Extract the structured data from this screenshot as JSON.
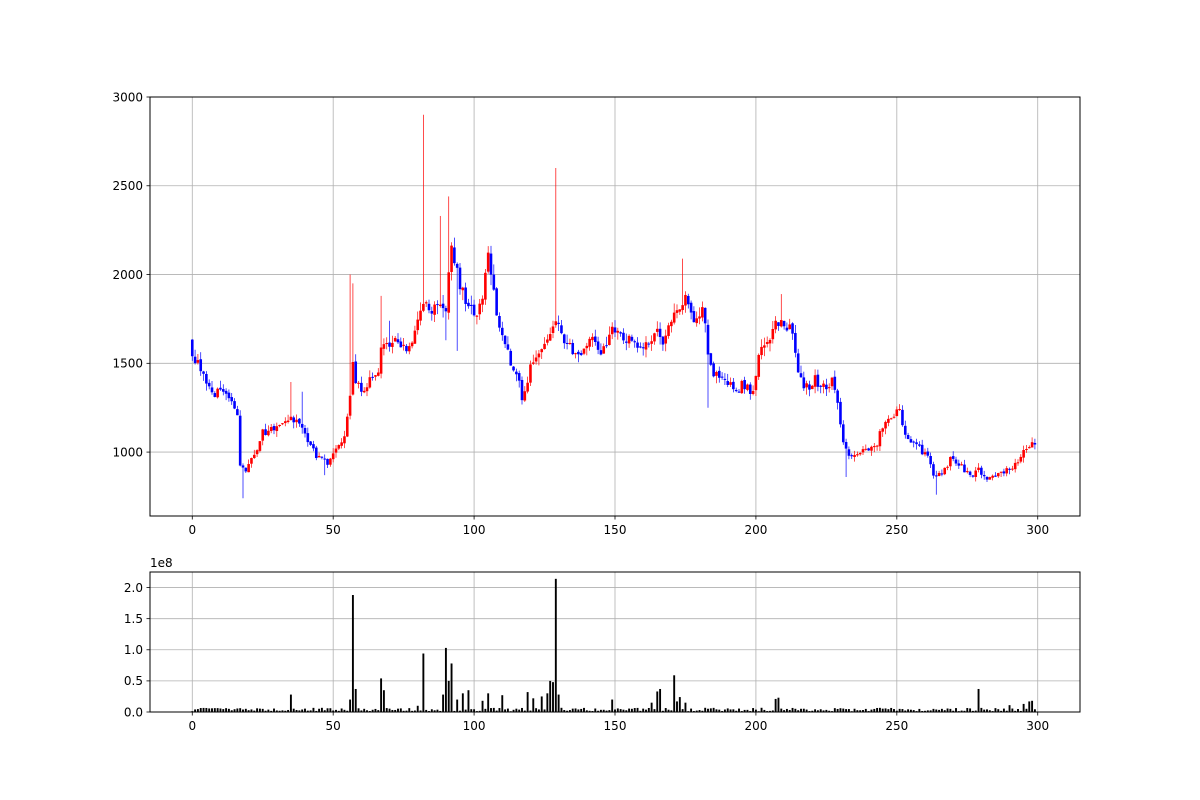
{
  "chart_data": [
    {
      "type": "candlestick",
      "panel": "price",
      "xlim": [
        -15,
        315
      ],
      "ylim": [
        640,
        3000
      ],
      "grid": true,
      "xticks": [
        0,
        50,
        100,
        150,
        200,
        250,
        300
      ],
      "yticks": [
        1000,
        1500,
        2000,
        2500,
        3000
      ],
      "xtick_labels": [
        "0",
        "50",
        "100",
        "150",
        "200",
        "250",
        "300"
      ],
      "ytick_labels": [
        "1000",
        "1500",
        "2000",
        "2500",
        "3000"
      ],
      "close_anchors": [
        [
          0,
          1520
        ],
        [
          2,
          1500
        ],
        [
          4,
          1420
        ],
        [
          6,
          1380
        ],
        [
          8,
          1330
        ],
        [
          10,
          1360
        ],
        [
          12,
          1320
        ],
        [
          14,
          1300
        ],
        [
          16,
          1200
        ],
        [
          17,
          920
        ],
        [
          19,
          900
        ],
        [
          21,
          960
        ],
        [
          23,
          1020
        ],
        [
          25,
          1110
        ],
        [
          27,
          1120
        ],
        [
          30,
          1150
        ],
        [
          32,
          1170
        ],
        [
          34,
          1190
        ],
        [
          36,
          1180
        ],
        [
          38,
          1150
        ],
        [
          40,
          1100
        ],
        [
          42,
          1040
        ],
        [
          44,
          980
        ],
        [
          46,
          960
        ],
        [
          48,
          940
        ],
        [
          50,
          980
        ],
        [
          52,
          1030
        ],
        [
          54,
          1100
        ],
        [
          56,
          1300
        ],
        [
          57,
          1500
        ],
        [
          58,
          1400
        ],
        [
          60,
          1340
        ],
        [
          62,
          1380
        ],
        [
          64,
          1420
        ],
        [
          66,
          1450
        ],
        [
          67,
          1600
        ],
        [
          70,
          1620
        ],
        [
          72,
          1640
        ],
        [
          74,
          1600
        ],
        [
          76,
          1560
        ],
        [
          78,
          1640
        ],
        [
          80,
          1720
        ],
        [
          82,
          1840
        ],
        [
          84,
          1800
        ],
        [
          86,
          1820
        ],
        [
          88,
          1830
        ],
        [
          90,
          1820
        ],
        [
          92,
          2200
        ],
        [
          93,
          2100
        ],
        [
          95,
          1950
        ],
        [
          97,
          1860
        ],
        [
          99,
          1820
        ],
        [
          101,
          1760
        ],
        [
          103,
          1860
        ],
        [
          105,
          2100
        ],
        [
          106,
          2000
        ],
        [
          107,
          1900
        ],
        [
          108,
          1800
        ],
        [
          110,
          1640
        ],
        [
          112,
          1560
        ],
        [
          114,
          1460
        ],
        [
          116,
          1380
        ],
        [
          117,
          1290
        ],
        [
          118,
          1340
        ],
        [
          120,
          1480
        ],
        [
          122,
          1560
        ],
        [
          124,
          1560
        ],
        [
          126,
          1640
        ],
        [
          128,
          1720
        ],
        [
          129,
          1750
        ],
        [
          131,
          1650
        ],
        [
          133,
          1620
        ],
        [
          135,
          1570
        ],
        [
          137,
          1560
        ],
        [
          139,
          1580
        ],
        [
          141,
          1610
        ],
        [
          143,
          1640
        ],
        [
          145,
          1540
        ],
        [
          147,
          1620
        ],
        [
          149,
          1700
        ],
        [
          151,
          1680
        ],
        [
          153,
          1640
        ],
        [
          155,
          1640
        ],
        [
          157,
          1600
        ],
        [
          159,
          1580
        ],
        [
          161,
          1600
        ],
        [
          163,
          1650
        ],
        [
          165,
          1700
        ],
        [
          167,
          1620
        ],
        [
          169,
          1700
        ],
        [
          171,
          1760
        ],
        [
          173,
          1800
        ],
        [
          175,
          1860
        ],
        [
          177,
          1780
        ],
        [
          179,
          1740
        ],
        [
          181,
          1840
        ],
        [
          183,
          1560
        ],
        [
          185,
          1450
        ],
        [
          187,
          1420
        ],
        [
          189,
          1410
        ],
        [
          191,
          1380
        ],
        [
          193,
          1330
        ],
        [
          195,
          1390
        ],
        [
          197,
          1360
        ],
        [
          199,
          1340
        ],
        [
          201,
          1560
        ],
        [
          203,
          1580
        ],
        [
          205,
          1640
        ],
        [
          207,
          1720
        ],
        [
          209,
          1760
        ],
        [
          211,
          1700
        ],
        [
          213,
          1680
        ],
        [
          215,
          1450
        ],
        [
          217,
          1380
        ],
        [
          219,
          1360
        ],
        [
          221,
          1420
        ],
        [
          223,
          1360
        ],
        [
          225,
          1370
        ],
        [
          227,
          1400
        ],
        [
          229,
          1300
        ],
        [
          231,
          1040
        ],
        [
          233,
          980
        ],
        [
          235,
          990
        ],
        [
          237,
          1000
        ],
        [
          239,
          1010
        ],
        [
          241,
          1030
        ],
        [
          243,
          1050
        ],
        [
          245,
          1150
        ],
        [
          247,
          1190
        ],
        [
          249,
          1220
        ],
        [
          251,
          1230
        ],
        [
          253,
          1080
        ],
        [
          255,
          1060
        ],
        [
          257,
          1040
        ],
        [
          259,
          1000
        ],
        [
          261,
          980
        ],
        [
          263,
          880
        ],
        [
          265,
          870
        ],
        [
          267,
          900
        ],
        [
          269,
          960
        ],
        [
          271,
          950
        ],
        [
          273,
          920
        ],
        [
          275,
          880
        ],
        [
          277,
          870
        ],
        [
          279,
          900
        ],
        [
          281,
          860
        ],
        [
          283,
          850
        ],
        [
          285,
          870
        ],
        [
          287,
          880
        ],
        [
          289,
          900
        ],
        [
          291,
          920
        ],
        [
          293,
          950
        ],
        [
          295,
          1000
        ],
        [
          297,
          1040
        ],
        [
          299,
          1040
        ]
      ],
      "wick_spikes": [
        {
          "x": 35,
          "high": 1395
        },
        {
          "x": 39,
          "high": 1340
        },
        {
          "x": 56,
          "high": 2000
        },
        {
          "x": 57,
          "high": 1950
        },
        {
          "x": 67,
          "high": 1880
        },
        {
          "x": 70,
          "high": 1740
        },
        {
          "x": 82,
          "high": 2900
        },
        {
          "x": 88,
          "high": 2330
        },
        {
          "x": 91,
          "high": 2440
        },
        {
          "x": 105,
          "high": 2160
        },
        {
          "x": 129,
          "high": 2600
        },
        {
          "x": 174,
          "high": 2090
        },
        {
          "x": 209,
          "high": 1890
        },
        {
          "x": 251,
          "high": 1270
        }
      ],
      "wick_dips": [
        {
          "x": 18,
          "low": 740
        },
        {
          "x": 47,
          "low": 870
        },
        {
          "x": 90,
          "low": 1630
        },
        {
          "x": 94,
          "low": 1570
        },
        {
          "x": 183,
          "low": 1250
        },
        {
          "x": 232,
          "low": 860
        },
        {
          "x": 264,
          "low": 760
        }
      ],
      "colors": {
        "up": "#ff0000",
        "down": "#0000ff"
      }
    },
    {
      "type": "bar",
      "panel": "volume",
      "xlim": [
        -15,
        315
      ],
      "ylim": [
        0,
        2.25
      ],
      "grid": true,
      "scale_label": "1e8",
      "xticks": [
        0,
        50,
        100,
        150,
        200,
        250,
        300
      ],
      "yticks": [
        0.0,
        0.5,
        1.0,
        1.5,
        2.0
      ],
      "xtick_labels": [
        "0",
        "50",
        "100",
        "150",
        "200",
        "250",
        "300"
      ],
      "ytick_labels": [
        "0.0",
        "0.5",
        "1.0",
        "1.5",
        "2.0"
      ],
      "baseline_volume_1e8": 0.04,
      "volume_peaks_1e8": [
        [
          35,
          0.28
        ],
        [
          56,
          0.2
        ],
        [
          57,
          1.88
        ],
        [
          58,
          0.37
        ],
        [
          67,
          0.54
        ],
        [
          68,
          0.35
        ],
        [
          80,
          0.1
        ],
        [
          82,
          0.94
        ],
        [
          89,
          0.28
        ],
        [
          90,
          1.03
        ],
        [
          91,
          0.5
        ],
        [
          92,
          0.78
        ],
        [
          94,
          0.2
        ],
        [
          96,
          0.3
        ],
        [
          98,
          0.35
        ],
        [
          103,
          0.18
        ],
        [
          105,
          0.3
        ],
        [
          110,
          0.27
        ],
        [
          119,
          0.32
        ],
        [
          121,
          0.22
        ],
        [
          124,
          0.25
        ],
        [
          126,
          0.3
        ],
        [
          127,
          0.5
        ],
        [
          128,
          0.48
        ],
        [
          129,
          2.14
        ],
        [
          130,
          0.28
        ],
        [
          149,
          0.2
        ],
        [
          163,
          0.15
        ],
        [
          165,
          0.33
        ],
        [
          166,
          0.37
        ],
        [
          171,
          0.59
        ],
        [
          172,
          0.17
        ],
        [
          173,
          0.24
        ],
        [
          175,
          0.15
        ],
        [
          207,
          0.21
        ],
        [
          208,
          0.23
        ],
        [
          279,
          0.37
        ],
        [
          290,
          0.11
        ],
        [
          295,
          0.13
        ],
        [
          297,
          0.17
        ],
        [
          298,
          0.18
        ]
      ],
      "color": "#000000"
    }
  ]
}
